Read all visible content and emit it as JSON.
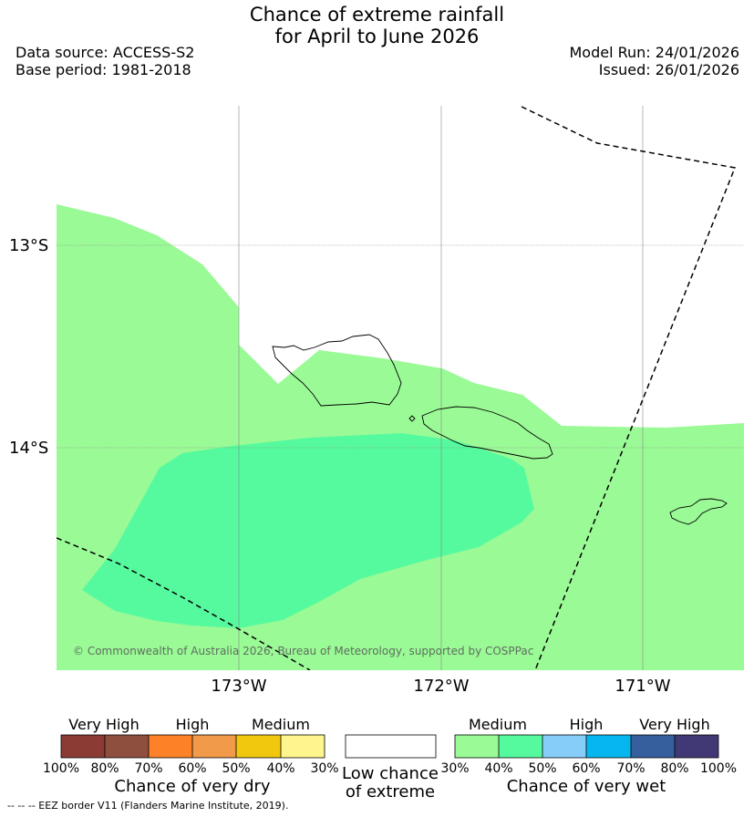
{
  "title": {
    "line1": "Chance of extreme rainfall",
    "line2": "for April to June 2026"
  },
  "info": {
    "data_source": "Data source: ACCESS-S2",
    "base_period": "Base period: 1981-2018",
    "model_run": "Model Run: 24/01/2026",
    "issued": "Issued: 26/01/2026"
  },
  "map": {
    "lat_labels": [
      "13°S",
      "14°S"
    ],
    "lon_labels": [
      "173°W",
      "172°W",
      "171°W"
    ],
    "copyright": "© Commonwealth of Australia 2026, Bureau of Meteorology, supported by COSPPac",
    "colors": {
      "medium_wet": "#9afa96",
      "high_medium_wet": "#56fa9e"
    }
  },
  "legend": {
    "dry": {
      "categories": [
        "Very High",
        "High",
        "Medium"
      ],
      "ticks": [
        "100%",
        "80%",
        "70%",
        "60%",
        "50%",
        "40%",
        "30%"
      ],
      "colors": [
        "#8b3a34",
        "#8e4f3e",
        "#fd8126",
        "#f09a4a",
        "#f2c80f",
        "#fef58e"
      ],
      "caption": "Chance of very dry"
    },
    "neutral": {
      "caption_line1": "Low chance",
      "caption_line2": "of extreme",
      "color": "#ffffff"
    },
    "wet": {
      "categories": [
        "Medium",
        "High",
        "Very High"
      ],
      "ticks": [
        "30%",
        "40%",
        "50%",
        "60%",
        "70%",
        "80%",
        "100%"
      ],
      "colors": [
        "#9afa96",
        "#56fa9e",
        "#87cdfa",
        "#06b6ef",
        "#365f9d",
        "#413976"
      ],
      "caption": "Chance of very wet"
    }
  },
  "footnote": "--  --  -- EEZ border V11 (Flanders Marine Institute, 2019)."
}
